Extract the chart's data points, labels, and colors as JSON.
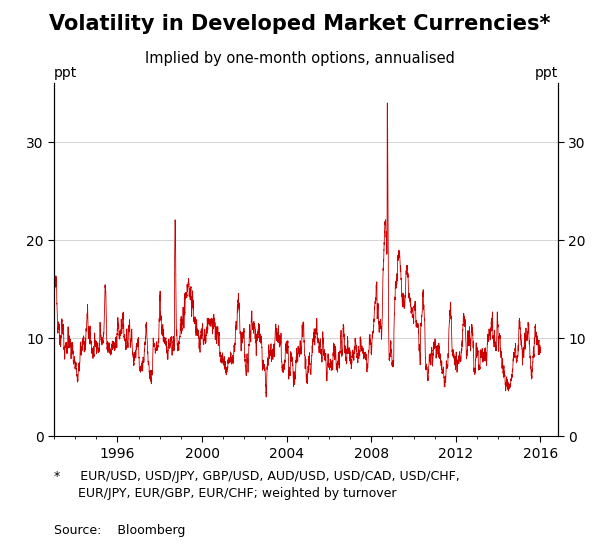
{
  "title": "Volatility in Developed Market Currencies*",
  "subtitle": "Implied by one-month options, annualised",
  "ylabel_left": "ppt",
  "ylabel_right": "ppt",
  "xlim": [
    1993.0,
    2016.83
  ],
  "ylim": [
    0,
    36
  ],
  "yticks": [
    0,
    10,
    20,
    30
  ],
  "xticks": [
    1996,
    2000,
    2004,
    2008,
    2012,
    2016
  ],
  "line_color": "#cc0000",
  "background_color": "#ffffff",
  "footnote_line1": "*     EUR/USD, USD/JPY, GBP/USD, AUD/USD, USD/CAD, USD/CHF,",
  "footnote_line2": "      EUR/JPY, EUR/GBP, EUR/CHF; weighted by turnover",
  "source": "Source:    Bloomberg",
  "title_fontsize": 15,
  "subtitle_fontsize": 10.5,
  "tick_fontsize": 10,
  "footnote_fontsize": 9,
  "ppt_fontsize": 10
}
